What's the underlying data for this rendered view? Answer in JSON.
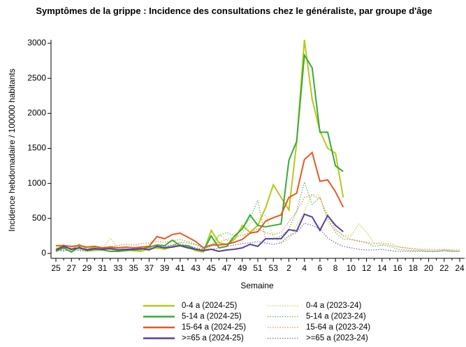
{
  "chart_data": {
    "type": "line",
    "title": "Symptômes de la grippe : Incidence des consultations chez le généraliste, par groupe d'âge",
    "x_label": "Semaine",
    "y_label": "Incidence hebdomadaire / 100000 habitants",
    "categories": [
      "25",
      null,
      "27",
      null,
      "29",
      null,
      "31",
      null,
      "33",
      null,
      "35",
      null,
      "37",
      null,
      "39",
      null,
      "41",
      null,
      "43",
      null,
      "45",
      null,
      "47",
      null,
      "49",
      null,
      "51",
      null,
      "53",
      null,
      "2",
      null,
      "4",
      null,
      "6",
      null,
      "8",
      null,
      "10",
      null,
      "12",
      null,
      "14",
      null,
      "16",
      null,
      "18",
      null,
      "20",
      null,
      "22",
      null,
      "24"
    ],
    "ylim": [
      -70,
      3050
    ],
    "yticks": [
      0,
      500,
      1000,
      1500,
      2000,
      2500,
      3000
    ],
    "series": [
      {
        "name": "0-4 a (2024-25)",
        "color": "#b5c918",
        "linestyle": "solid",
        "values": [
          60,
          120,
          50,
          130,
          60,
          90,
          80,
          60,
          50,
          60,
          40,
          30,
          70,
          80,
          60,
          100,
          120,
          90,
          40,
          20,
          330,
          150,
          130,
          200,
          400,
          300,
          400,
          650,
          980,
          800,
          620,
          1580,
          3050,
          2200,
          1750,
          1500,
          1430,
          800,
          null,
          null,
          null,
          null,
          null,
          null,
          null,
          null,
          null,
          null,
          null,
          null,
          null,
          null,
          null
        ]
      },
      {
        "name": "5-14 a (2024-25)",
        "color": "#3aaa35",
        "linestyle": "solid",
        "values": [
          30,
          80,
          20,
          90,
          40,
          60,
          50,
          30,
          30,
          40,
          50,
          60,
          90,
          120,
          110,
          190,
          110,
          110,
          60,
          40,
          250,
          80,
          100,
          250,
          350,
          550,
          400,
          380,
          400,
          420,
          1330,
          1600,
          2830,
          2650,
          1730,
          1730,
          1250,
          1170,
          null,
          null,
          null,
          null,
          null,
          null,
          null,
          null,
          null,
          null,
          null,
          null,
          null,
          null,
          null
        ]
      },
      {
        "name": "15-64 a (2024-25)",
        "color": "#e8581f",
        "linestyle": "solid",
        "values": [
          110,
          110,
          100,
          110,
          90,
          100,
          80,
          90,
          80,
          90,
          80,
          90,
          100,
          240,
          210,
          270,
          290,
          230,
          170,
          80,
          120,
          120,
          130,
          160,
          200,
          290,
          310,
          460,
          510,
          550,
          800,
          860,
          1340,
          1440,
          1030,
          1050,
          880,
          660,
          null,
          null,
          null,
          null,
          null,
          null,
          null,
          null,
          null,
          null,
          null,
          null,
          null,
          null,
          null
        ]
      },
      {
        "name": ">=65 a (2024-25)",
        "color": "#5a3e9e",
        "linestyle": "solid",
        "values": [
          50,
          100,
          60,
          80,
          50,
          70,
          60,
          70,
          50,
          60,
          60,
          70,
          50,
          100,
          80,
          90,
          110,
          80,
          60,
          40,
          60,
          30,
          50,
          60,
          80,
          130,
          100,
          210,
          210,
          210,
          340,
          320,
          560,
          520,
          330,
          540,
          400,
          310,
          null,
          null,
          null,
          null,
          null,
          null,
          null,
          null,
          null,
          null,
          null,
          null,
          null,
          null,
          null
        ]
      },
      {
        "name": "0-4 a (2023-24)",
        "color": "#c9d63a",
        "linestyle": "dotted",
        "values": [
          80,
          50,
          100,
          60,
          40,
          30,
          60,
          220,
          80,
          60,
          30,
          50,
          90,
          60,
          80,
          120,
          150,
          110,
          80,
          40,
          100,
          280,
          180,
          200,
          300,
          420,
          500,
          550,
          240,
          150,
          200,
          400,
          600,
          850,
          820,
          450,
          330,
          260,
          250,
          420,
          300,
          150,
          120,
          150,
          100,
          80,
          60,
          50,
          40,
          30,
          50,
          40,
          30
        ]
      },
      {
        "name": "5-14 a (2023-24)",
        "color": "#5cbf58",
        "linestyle": "dotted",
        "values": [
          50,
          30,
          60,
          40,
          30,
          40,
          50,
          70,
          60,
          50,
          60,
          40,
          60,
          80,
          90,
          110,
          160,
          150,
          120,
          70,
          100,
          250,
          300,
          250,
          350,
          500,
          760,
          200,
          200,
          250,
          350,
          600,
          1020,
          700,
          800,
          500,
          300,
          200,
          200,
          180,
          150,
          100,
          120,
          100,
          60,
          50,
          40,
          40,
          30,
          30,
          40,
          30,
          30
        ]
      },
      {
        "name": "15-64 a (2023-24)",
        "color": "#ee8a5c",
        "linestyle": "dotted",
        "values": [
          80,
          60,
          80,
          70,
          60,
          70,
          80,
          100,
          110,
          130,
          120,
          140,
          150,
          170,
          160,
          180,
          200,
          170,
          130,
          90,
          120,
          160,
          200,
          230,
          260,
          300,
          350,
          300,
          270,
          300,
          450,
          600,
          800,
          830,
          780,
          550,
          350,
          250,
          200,
          170,
          160,
          140,
          150,
          120,
          90,
          80,
          70,
          60,
          60,
          50,
          60,
          50,
          50
        ]
      },
      {
        "name": ">=65 a (2023-24)",
        "color": "#7d67b5",
        "linestyle": "dotted",
        "values": [
          60,
          40,
          50,
          50,
          40,
          50,
          60,
          70,
          80,
          90,
          80,
          90,
          100,
          110,
          100,
          120,
          130,
          110,
          80,
          60,
          60,
          80,
          100,
          120,
          140,
          150,
          170,
          150,
          130,
          150,
          250,
          300,
          430,
          400,
          350,
          220,
          150,
          100,
          80,
          60,
          50,
          50,
          60,
          40,
          30,
          30,
          30,
          30,
          30,
          30,
          40,
          30,
          30
        ]
      }
    ]
  }
}
